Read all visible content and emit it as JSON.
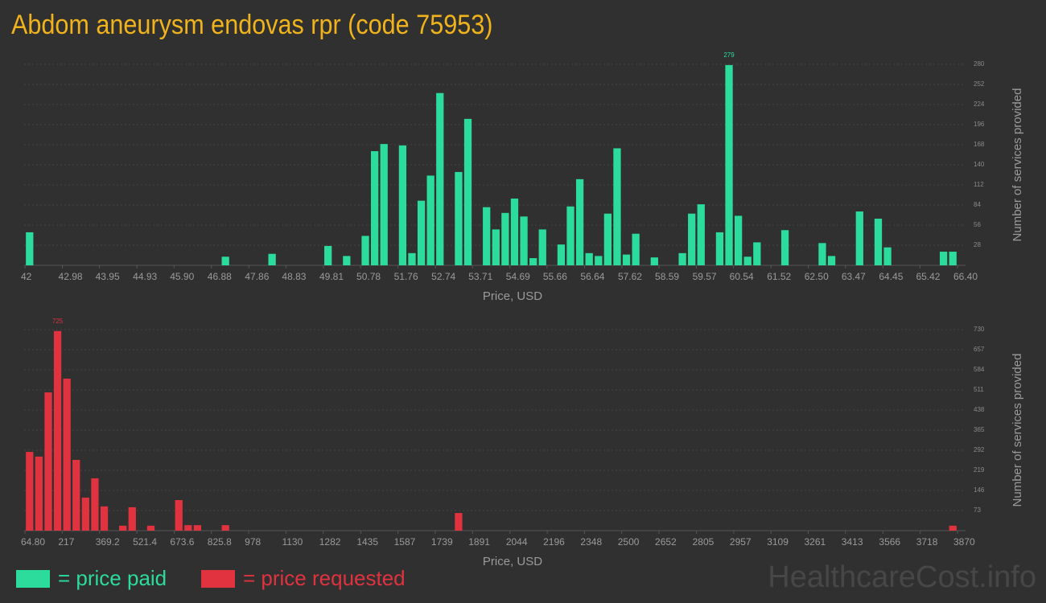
{
  "title": "Abdom aneurysm endovas rpr (code 75953)",
  "watermark": "HealthcareCost.info",
  "chart_data": [
    {
      "type": "histogram",
      "xlabel": "Price, USD",
      "ylabel": "Number of services provided",
      "xlim": [
        42,
        66.4
      ],
      "ylim": [
        0,
        280
      ],
      "grid": true,
      "label_max": true,
      "xticks": [
        42,
        42.98,
        43.95,
        44.93,
        {
          "value": 45.9,
          "label": "45.90"
        },
        46.88,
        47.86,
        48.83,
        49.81,
        50.78,
        51.76,
        52.74,
        53.71,
        54.69,
        55.66,
        56.64,
        57.62,
        58.59,
        59.57,
        60.54,
        61.52,
        {
          "value": 62.5,
          "label": "62.50"
        },
        63.47,
        64.45,
        65.42,
        {
          "value": 66.4,
          "label": "66.40"
        }
      ],
      "yticks": [
        28,
        56,
        84,
        112,
        140,
        168,
        196,
        224,
        252,
        280
      ],
      "bins": [
        42,
        42.244,
        42.488,
        42.732,
        42.976,
        43.22,
        43.464,
        43.708,
        43.952,
        44.196,
        44.44,
        44.684,
        44.928,
        45.172,
        45.416,
        45.66,
        45.904,
        46.148,
        46.392,
        46.636,
        46.88,
        47.124,
        47.368,
        47.612,
        47.856,
        48.1,
        48.344,
        48.588,
        48.832,
        49.076,
        49.32,
        49.564,
        49.808,
        50.052,
        50.296,
        50.54,
        50.784,
        51.028,
        51.272,
        51.516,
        51.76,
        52.004,
        52.248,
        52.492,
        52.736,
        52.98,
        53.224,
        53.468,
        53.712,
        53.956,
        54.2,
        54.444,
        54.688,
        54.932,
        55.176,
        55.42,
        55.664,
        55.908,
        56.152,
        56.396,
        56.64,
        56.884,
        57.128,
        57.372,
        57.616,
        57.86,
        58.104,
        58.348,
        58.592,
        58.836,
        59.08,
        59.324,
        59.568,
        59.812,
        60.056,
        60.3,
        60.544,
        60.788,
        61.032,
        61.276,
        61.52,
        61.764,
        62.008,
        62.252,
        62.496,
        62.74,
        62.984,
        63.228,
        63.472,
        63.716,
        63.96,
        64.204,
        64.448,
        64.692,
        64.936,
        65.18,
        65.424,
        65.668,
        65.912,
        66.156,
        66.4
      ],
      "series": [
        {
          "name": "= price paid",
          "color": "#2bdc9c",
          "values": [
            46,
            0,
            0,
            0,
            0,
            0,
            0,
            0,
            0,
            0,
            0,
            0,
            0,
            0,
            0,
            0,
            0,
            0,
            0,
            0,
            0,
            12,
            0,
            0,
            0,
            0,
            16,
            0,
            0,
            0,
            0,
            0,
            27,
            0,
            13,
            0,
            41,
            159,
            169,
            0,
            167,
            17,
            90,
            125,
            240,
            0,
            130,
            204,
            0,
            81,
            50,
            73,
            93,
            68,
            10,
            50,
            0,
            29,
            82,
            120,
            17,
            13,
            72,
            163,
            15,
            44,
            0,
            11,
            0,
            0,
            17,
            72,
            85,
            0,
            46,
            279,
            69,
            12,
            32,
            0,
            0,
            49,
            0,
            0,
            0,
            31,
            13,
            0,
            0,
            75,
            0,
            65,
            25,
            0,
            0,
            0,
            0,
            0,
            19,
            19
          ]
        }
      ]
    },
    {
      "type": "histogram",
      "xlabel": "Price, USD",
      "ylabel": "Number of services provided",
      "xlim": [
        64.8,
        3870
      ],
      "ylim": [
        0,
        730
      ],
      "grid": true,
      "label_max": true,
      "xticks": [
        {
          "value": 64.8,
          "label": "64.80"
        },
        217,
        369.2,
        521.4,
        673.6,
        825.8,
        978,
        1130,
        1282,
        1435,
        1587,
        1739,
        1891,
        2044,
        2196,
        2348,
        2500,
        2652,
        2805,
        2957,
        3109,
        3261,
        3413,
        3566,
        3718,
        3870
      ],
      "yticks": [
        73,
        146,
        219,
        292,
        365,
        438,
        511,
        584,
        657,
        730
      ],
      "bins": [
        64.8,
        102.852,
        140.904,
        178.956,
        217.008,
        255.06,
        293.112,
        331.164,
        369.216,
        407.268,
        445.32,
        483.372,
        521.424,
        559.476,
        597.528,
        635.58,
        673.632,
        711.684,
        749.736,
        787.788,
        825.84,
        863.892,
        901.944,
        939.996,
        978.048,
        1016.1,
        1054.152,
        1092.204,
        1130.256,
        1168.308,
        1206.36,
        1244.412,
        1282.464,
        1320.516,
        1358.568,
        1396.62,
        1434.672,
        1472.724,
        1510.776,
        1548.828,
        1586.88,
        1624.932,
        1662.984,
        1701.036,
        1739.088,
        1777.14,
        1815.192,
        1853.244,
        1891.296,
        1929.348,
        1967.4,
        2005.452,
        2043.504,
        2081.556,
        2119.608,
        2157.66,
        2195.712,
        2233.764,
        2271.816,
        2309.868,
        2347.92,
        2385.972,
        2424.024,
        2462.076,
        2500.128,
        2538.18,
        2576.232,
        2614.284,
        2652.336,
        2690.388,
        2728.44,
        2766.492,
        2804.544,
        2842.596,
        2880.648,
        2918.7,
        2956.752,
        2994.804,
        3032.856,
        3070.908,
        3108.96,
        3147.012,
        3185.064,
        3223.116,
        3261.168,
        3299.22,
        3337.272,
        3375.324,
        3413.376,
        3451.428,
        3489.48,
        3527.532,
        3565.584,
        3603.636,
        3641.688,
        3679.74,
        3717.792,
        3755.844,
        3793.896,
        3831.948,
        3870
      ],
      "series": [
        {
          "name": "= price requested",
          "color": "#e0323f",
          "values": [
            286,
            269,
            502,
            725,
            552,
            257,
            120,
            190,
            88,
            0,
            18,
            85,
            0,
            18,
            0,
            0,
            111,
            20,
            20,
            0,
            0,
            20,
            0,
            0,
            0,
            0,
            0,
            0,
            0,
            0,
            0,
            0,
            0,
            0,
            0,
            0,
            0,
            0,
            0,
            0,
            0,
            0,
            0,
            0,
            0,
            0,
            64,
            0,
            0,
            0,
            0,
            0,
            0,
            0,
            0,
            0,
            0,
            0,
            0,
            0,
            0,
            0,
            0,
            0,
            0,
            0,
            0,
            0,
            0,
            0,
            0,
            0,
            0,
            0,
            0,
            0,
            0,
            0,
            0,
            0,
            0,
            0,
            0,
            0,
            0,
            0,
            0,
            0,
            0,
            0,
            0,
            0,
            0,
            0,
            0,
            0,
            0,
            0,
            0,
            18
          ]
        }
      ]
    }
  ]
}
